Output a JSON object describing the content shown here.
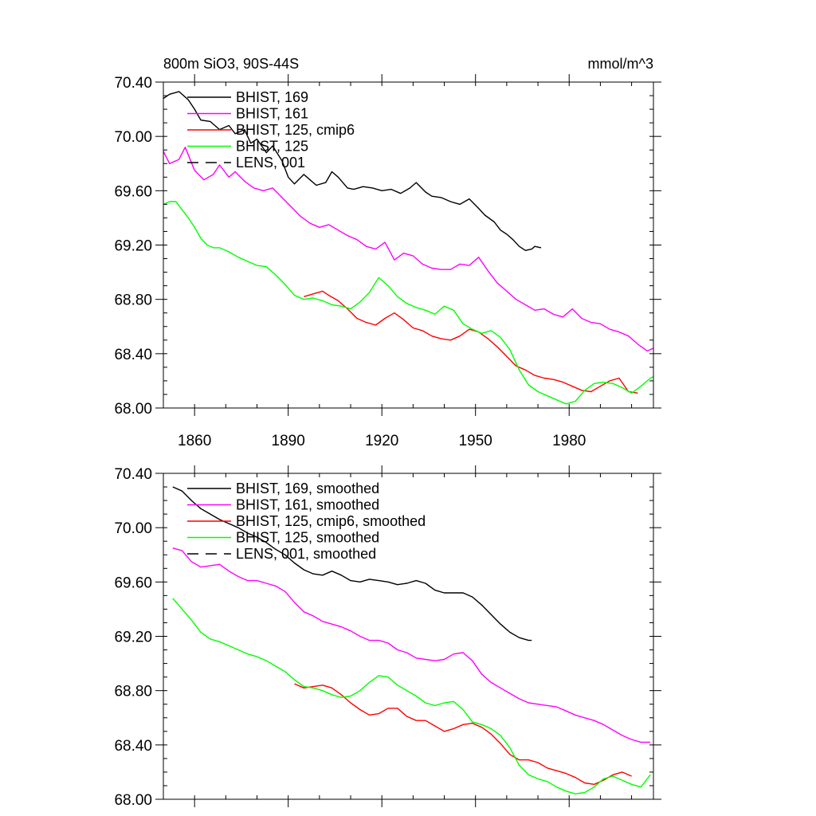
{
  "chart_data": [
    {
      "type": "line",
      "title": "800m SiO3, 90S-44S",
      "units": "mmol/m^3",
      "xlim": [
        1850,
        2007
      ],
      "ylim": [
        68.0,
        70.4
      ],
      "x_ticks": [
        1860,
        1890,
        1920,
        1950,
        1980
      ],
      "y_ticks": [
        "70.40",
        "70.00",
        "69.60",
        "69.20",
        "68.80",
        "68.40",
        "68.00"
      ],
      "grid": false,
      "legend_position": "top-left",
      "series": [
        {
          "name": "BHIST, 169",
          "color": "#000000",
          "dash": "solid",
          "x": [
            1850,
            1852,
            1855,
            1858,
            1860,
            1862,
            1865,
            1868,
            1871,
            1873,
            1876,
            1878,
            1880,
            1883,
            1885,
            1888,
            1890,
            1892,
            1895,
            1897,
            1899,
            1902,
            1904,
            1906,
            1909,
            1911,
            1914,
            1917,
            1920,
            1923,
            1926,
            1929,
            1931,
            1934,
            1936,
            1939,
            1942,
            1945,
            1948,
            1951,
            1953,
            1956,
            1958,
            1960,
            1962,
            1964,
            1966,
            1968,
            1969,
            1971
          ],
          "values": [
            70.28,
            70.31,
            70.33,
            70.27,
            70.2,
            70.12,
            70.11,
            70.05,
            70.08,
            70.02,
            70.05,
            69.95,
            69.98,
            69.88,
            69.93,
            69.82,
            69.7,
            69.65,
            69.72,
            69.68,
            69.64,
            69.66,
            69.74,
            69.7,
            69.62,
            69.61,
            69.63,
            69.62,
            69.6,
            69.61,
            69.58,
            69.62,
            69.66,
            69.59,
            69.56,
            69.55,
            69.52,
            69.5,
            69.54,
            69.47,
            69.42,
            69.37,
            69.31,
            69.28,
            69.24,
            69.19,
            69.16,
            69.17,
            69.19,
            69.18
          ]
        },
        {
          "name": "BHIST, 161",
          "color": "#ff00ff",
          "dash": "solid",
          "x": [
            1850,
            1852,
            1855,
            1857,
            1860,
            1863,
            1866,
            1868,
            1871,
            1873,
            1876,
            1879,
            1882,
            1885,
            1888,
            1891,
            1894,
            1897,
            1900,
            1903,
            1906,
            1909,
            1912,
            1915,
            1918,
            1921,
            1924,
            1927,
            1930,
            1933,
            1936,
            1939,
            1942,
            1945,
            1948,
            1951,
            1954,
            1957,
            1960,
            1963,
            1966,
            1969,
            1972,
            1975,
            1978,
            1981,
            1984,
            1987,
            1990,
            1993,
            1996,
            1999,
            2002,
            2005,
            2007
          ],
          "values": [
            69.89,
            69.8,
            69.83,
            69.92,
            69.75,
            69.68,
            69.72,
            69.79,
            69.7,
            69.74,
            69.67,
            69.62,
            69.6,
            69.62,
            69.55,
            69.48,
            69.41,
            69.36,
            69.33,
            69.35,
            69.31,
            69.27,
            69.24,
            69.19,
            69.17,
            69.22,
            69.09,
            69.14,
            69.12,
            69.06,
            69.03,
            69.02,
            69.02,
            69.06,
            69.05,
            69.11,
            69.01,
            68.92,
            68.86,
            68.8,
            68.76,
            68.72,
            68.73,
            68.69,
            68.67,
            68.73,
            68.66,
            68.63,
            68.62,
            68.58,
            68.56,
            68.53,
            68.47,
            68.42,
            68.44
          ]
        },
        {
          "name": "BHIST, 125, cmip6",
          "color": "#ff0000",
          "dash": "solid",
          "x": [
            1895,
            1898,
            1901,
            1903,
            1906,
            1909,
            1912,
            1915,
            1918,
            1921,
            1924,
            1927,
            1930,
            1933,
            1936,
            1939,
            1942,
            1945,
            1948,
            1951,
            1954,
            1957,
            1960,
            1963,
            1966,
            1969,
            1972,
            1975,
            1978,
            1981,
            1984,
            1987,
            1990,
            1993,
            1996,
            1999,
            2002
          ],
          "values": [
            68.82,
            68.84,
            68.86,
            68.83,
            68.79,
            68.73,
            68.66,
            68.63,
            68.61,
            68.66,
            68.7,
            68.65,
            68.59,
            68.57,
            68.53,
            68.51,
            68.5,
            68.53,
            68.58,
            68.56,
            68.51,
            68.45,
            68.38,
            68.31,
            68.28,
            68.24,
            68.22,
            68.21,
            68.19,
            68.16,
            68.13,
            68.12,
            68.16,
            68.2,
            68.22,
            68.12,
            68.11
          ]
        },
        {
          "name": "BHIST, 125",
          "color": "#00ff00",
          "dash": "solid",
          "x": [
            1850,
            1852,
            1854,
            1856,
            1858,
            1860,
            1862,
            1864,
            1866,
            1868,
            1871,
            1874,
            1877,
            1880,
            1883,
            1886,
            1889,
            1892,
            1895,
            1898,
            1901,
            1904,
            1907,
            1910,
            1913,
            1916,
            1919,
            1922,
            1925,
            1928,
            1931,
            1934,
            1937,
            1940,
            1943,
            1946,
            1949,
            1952,
            1955,
            1958,
            1961,
            1964,
            1967,
            1970,
            1973,
            1976,
            1979,
            1982,
            1985,
            1988,
            1991,
            1994,
            1997,
            2000,
            2003,
            2006,
            2007
          ],
          "values": [
            69.5,
            69.52,
            69.52,
            69.46,
            69.4,
            69.33,
            69.25,
            69.2,
            69.18,
            69.18,
            69.15,
            69.11,
            69.08,
            69.05,
            69.04,
            68.98,
            68.91,
            68.83,
            68.8,
            68.81,
            68.79,
            68.76,
            68.75,
            68.73,
            68.78,
            68.85,
            68.96,
            68.9,
            68.82,
            68.77,
            68.74,
            68.72,
            68.69,
            68.75,
            68.72,
            68.62,
            68.58,
            68.55,
            68.57,
            68.52,
            68.43,
            68.28,
            68.17,
            68.12,
            68.09,
            68.06,
            68.03,
            68.05,
            68.13,
            68.18,
            68.19,
            68.18,
            68.15,
            68.11,
            68.16,
            68.22,
            68.23
          ]
        }
      ]
    },
    {
      "type": "line",
      "xlim": [
        1850,
        2007
      ],
      "ylim": [
        68.0,
        70.4
      ],
      "y_ticks": [
        "70.40",
        "70.00",
        "69.60",
        "69.20",
        "68.80",
        "68.40",
        "68.00"
      ],
      "grid": false,
      "legend_position": "top-left",
      "series": [
        {
          "name": "BHIST, 169, smoothed",
          "color": "#000000",
          "dash": "solid",
          "x": [
            1853,
            1856,
            1859,
            1862,
            1865,
            1868,
            1871,
            1874,
            1877,
            1880,
            1883,
            1886,
            1889,
            1892,
            1895,
            1898,
            1901,
            1904,
            1907,
            1910,
            1913,
            1916,
            1919,
            1922,
            1925,
            1928,
            1931,
            1934,
            1937,
            1940,
            1943,
            1946,
            1949,
            1952,
            1955,
            1958,
            1961,
            1964,
            1967,
            1968
          ],
          "values": [
            70.3,
            70.27,
            70.2,
            70.14,
            70.1,
            70.06,
            70.03,
            70.0,
            69.96,
            69.93,
            69.89,
            69.84,
            69.8,
            69.74,
            69.69,
            69.66,
            69.65,
            69.68,
            69.65,
            69.61,
            69.6,
            69.62,
            69.61,
            69.6,
            69.58,
            69.59,
            69.61,
            69.59,
            69.54,
            69.52,
            69.52,
            69.52,
            69.49,
            69.43,
            69.36,
            69.29,
            69.23,
            69.19,
            69.17,
            69.17
          ]
        },
        {
          "name": "BHIST, 161, smoothed",
          "color": "#ff00ff",
          "dash": "solid",
          "x": [
            1853,
            1856,
            1859,
            1862,
            1865,
            1868,
            1871,
            1874,
            1877,
            1880,
            1883,
            1886,
            1889,
            1892,
            1895,
            1898,
            1901,
            1904,
            1907,
            1910,
            1913,
            1916,
            1919,
            1922,
            1925,
            1928,
            1931,
            1934,
            1937,
            1940,
            1943,
            1946,
            1949,
            1952,
            1955,
            1958,
            1961,
            1964,
            1967,
            1970,
            1973,
            1976,
            1979,
            1982,
            1985,
            1988,
            1991,
            1994,
            1997,
            2000,
            2003,
            2006
          ],
          "values": [
            69.85,
            69.83,
            69.75,
            69.71,
            69.72,
            69.73,
            69.68,
            69.64,
            69.61,
            69.61,
            69.59,
            69.57,
            69.53,
            69.45,
            69.38,
            69.35,
            69.31,
            69.29,
            69.27,
            69.24,
            69.2,
            69.17,
            69.17,
            69.15,
            69.1,
            69.08,
            69.04,
            69.03,
            69.02,
            69.03,
            69.07,
            69.08,
            69.02,
            68.92,
            68.86,
            68.82,
            68.78,
            68.74,
            68.71,
            68.7,
            68.69,
            68.68,
            68.65,
            68.62,
            68.6,
            68.58,
            68.55,
            68.51,
            68.47,
            68.44,
            68.42,
            68.42
          ]
        },
        {
          "name": "BHIST, 125, cmip6, smoothed",
          "color": "#ff0000",
          "dash": "solid",
          "x": [
            1892,
            1895,
            1898,
            1901,
            1904,
            1907,
            1910,
            1913,
            1916,
            1919,
            1922,
            1925,
            1928,
            1931,
            1934,
            1937,
            1940,
            1943,
            1946,
            1949,
            1952,
            1955,
            1958,
            1961,
            1964,
            1967,
            1970,
            1973,
            1976,
            1979,
            1982,
            1985,
            1988,
            1991,
            1994,
            1997,
            2000
          ],
          "values": [
            68.85,
            68.82,
            68.83,
            68.84,
            68.82,
            68.77,
            68.71,
            68.66,
            68.62,
            68.63,
            68.67,
            68.67,
            68.61,
            68.58,
            68.58,
            68.54,
            68.5,
            68.52,
            68.55,
            68.56,
            68.53,
            68.48,
            68.41,
            68.33,
            68.29,
            68.29,
            68.27,
            68.23,
            68.21,
            68.19,
            68.16,
            68.12,
            68.11,
            68.14,
            68.18,
            68.2,
            68.17
          ]
        },
        {
          "name": "BHIST, 125, smoothed",
          "color": "#00ff00",
          "dash": "solid",
          "x": [
            1853,
            1856,
            1859,
            1862,
            1865,
            1868,
            1871,
            1874,
            1877,
            1880,
            1883,
            1886,
            1889,
            1892,
            1895,
            1898,
            1901,
            1904,
            1907,
            1910,
            1913,
            1916,
            1919,
            1922,
            1925,
            1928,
            1931,
            1934,
            1937,
            1940,
            1943,
            1946,
            1949,
            1952,
            1955,
            1958,
            1961,
            1964,
            1967,
            1970,
            1973,
            1976,
            1979,
            1982,
            1985,
            1988,
            1991,
            1994,
            1997,
            2000,
            2003,
            2006
          ],
          "values": [
            69.48,
            69.4,
            69.32,
            69.23,
            69.18,
            69.16,
            69.13,
            69.1,
            69.07,
            69.05,
            69.02,
            68.98,
            68.94,
            68.88,
            68.83,
            68.82,
            68.8,
            68.77,
            68.75,
            68.76,
            68.8,
            68.86,
            68.91,
            68.9,
            68.84,
            68.8,
            68.76,
            68.71,
            68.69,
            68.71,
            68.72,
            68.66,
            68.57,
            68.55,
            68.52,
            68.47,
            68.38,
            68.25,
            68.18,
            68.15,
            68.13,
            68.09,
            68.06,
            68.04,
            68.05,
            68.09,
            68.15,
            68.17,
            68.14,
            68.11,
            68.09,
            68.18
          ]
        }
      ]
    }
  ],
  "legends": [
    [
      {
        "label": "BHIST, 169",
        "color": "#000000",
        "dash": "solid"
      },
      {
        "label": "BHIST, 161",
        "color": "#ff00ff",
        "dash": "solid"
      },
      {
        "label": "BHIST, 125, cmip6",
        "color": "#ff0000",
        "dash": "solid"
      },
      {
        "label": "BHIST, 125",
        "color": "#00ff00",
        "dash": "solid"
      },
      {
        "label": "LENS, 001",
        "color": "#000000",
        "dash": "dashed"
      }
    ],
    [
      {
        "label": "BHIST, 169, smoothed",
        "color": "#000000",
        "dash": "solid"
      },
      {
        "label": "BHIST, 161, smoothed",
        "color": "#ff00ff",
        "dash": "solid"
      },
      {
        "label": "BHIST, 125, cmip6, smoothed",
        "color": "#ff0000",
        "dash": "solid"
      },
      {
        "label": "BHIST, 125, smoothed",
        "color": "#00ff00",
        "dash": "solid"
      },
      {
        "label": "LENS, 001, smoothed",
        "color": "#000000",
        "dash": "dashed"
      }
    ]
  ]
}
